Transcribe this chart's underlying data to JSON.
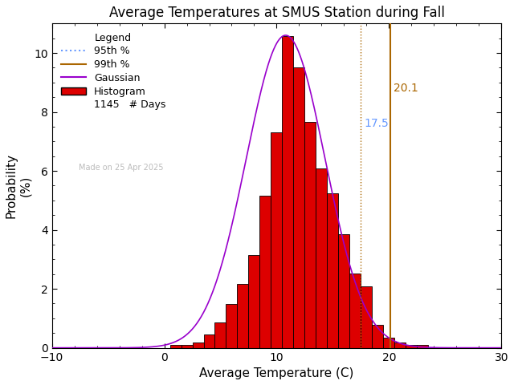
{
  "title": "Average Temperatures at SMUS Station during Fall",
  "xlabel": "Average Temperature (C)",
  "ylabel": "Probability\n(%)",
  "xlim": [
    -10,
    30
  ],
  "ylim": [
    0,
    11
  ],
  "yticks": [
    0,
    2,
    4,
    6,
    8,
    10
  ],
  "xticks": [
    -10,
    0,
    10,
    20,
    30
  ],
  "bin_centers": [
    1,
    2,
    3,
    4,
    5,
    6,
    7,
    8,
    9,
    10,
    11,
    12,
    13,
    14,
    15,
    16,
    17,
    18,
    19,
    20,
    21,
    22,
    23
  ],
  "bin_probs": [
    0.09,
    0.09,
    0.17,
    0.44,
    0.87,
    1.48,
    2.18,
    3.14,
    5.15,
    7.3,
    10.57,
    9.52,
    7.65,
    6.09,
    5.24,
    3.84,
    2.53,
    2.09,
    0.78,
    0.35,
    0.17,
    0.09,
    0.09
  ],
  "gauss_mean": 10.8,
  "gauss_std": 3.5,
  "gauss_peak": 10.6,
  "percentile_95": 17.5,
  "percentile_99": 20.1,
  "n_days": 1145,
  "watermark": "Made on 25 Apr 2025",
  "color_hist_face": "#dd0000",
  "color_hist_edge": "#000000",
  "color_95": "#7777ff",
  "color_95_label": "#6699ff",
  "color_99": "#aa6600",
  "color_gauss": "#9900cc",
  "color_watermark": "#bbbbbb",
  "background_color": "#ffffff",
  "title_fontsize": 12,
  "axis_fontsize": 11,
  "legend_fontsize": 9,
  "tick_fontsize": 10,
  "watermark_fontsize": 7
}
